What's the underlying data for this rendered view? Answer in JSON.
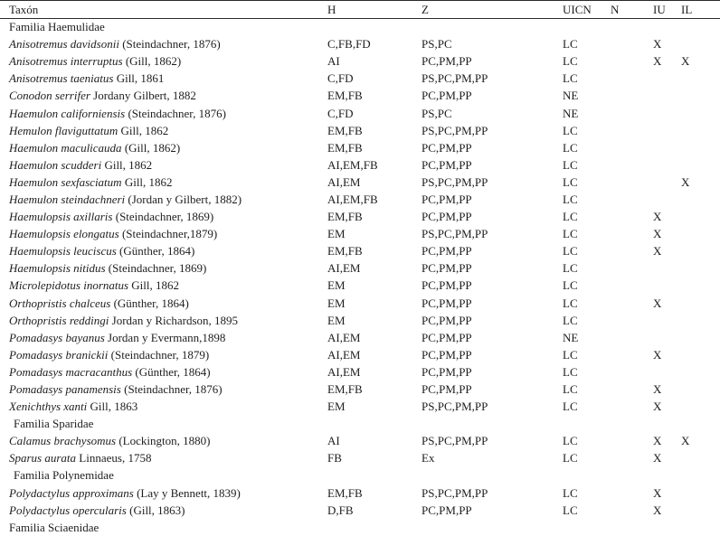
{
  "table": {
    "columns": [
      {
        "key": "taxon",
        "label": "Taxón"
      },
      {
        "key": "h",
        "label": "H"
      },
      {
        "key": "z",
        "label": "Z"
      },
      {
        "key": "uicn",
        "label": "UICN"
      },
      {
        "key": "n",
        "label": "N"
      },
      {
        "key": "iu",
        "label": "IU"
      },
      {
        "key": "il",
        "label": "IL"
      }
    ],
    "rows": [
      {
        "type": "family",
        "indent": false,
        "name": "Familia Haemulidae"
      },
      {
        "type": "species",
        "name": "Anisotremus davidsonii",
        "author": "(Steindachner, 1876)",
        "h": "C,FB,FD",
        "z": "PS,PC",
        "uicn": "LC",
        "n": "",
        "iu": "X",
        "il": ""
      },
      {
        "type": "species",
        "name": "Anisotremus interruptus",
        "author": "(Gill, 1862)",
        "h": "AI",
        "z": "PC,PM,PP",
        "uicn": "LC",
        "n": "",
        "iu": "X",
        "il": "X"
      },
      {
        "type": "species",
        "name": "Anisotremus taeniatus",
        "author": "Gill, 1861",
        "h": "C,FD",
        "z": "PS,PC,PM,PP",
        "uicn": "LC",
        "n": "",
        "iu": "",
        "il": ""
      },
      {
        "type": "species",
        "name": "Conodon serrifer",
        "author": "Jordany Gilbert, 1882",
        "h": "EM,FB",
        "z": "PC,PM,PP",
        "uicn": "NE",
        "n": "",
        "iu": "",
        "il": ""
      },
      {
        "type": "species",
        "name": "Haemulon californiensis",
        "author": "(Steindachner, 1876)",
        "h": "C,FD",
        "z": "PS,PC",
        "uicn": "NE",
        "n": "",
        "iu": "",
        "il": ""
      },
      {
        "type": "species",
        "name": "Hemulon flaviguttatum",
        "author": "Gill, 1862",
        "h": "EM,FB",
        "z": "PS,PC,PM,PP",
        "uicn": "LC",
        "n": "",
        "iu": "",
        "il": ""
      },
      {
        "type": "species",
        "name": "Haemulon maculicauda",
        "author": "(Gill, 1862)",
        "h": "EM,FB",
        "z": "PC,PM,PP",
        "uicn": "LC",
        "n": "",
        "iu": "",
        "il": ""
      },
      {
        "type": "species",
        "name": "Haemulon scudderi",
        "author": "Gill, 1862",
        "h": "AI,EM,FB",
        "z": "PC,PM,PP",
        "uicn": "LC",
        "n": "",
        "iu": "",
        "il": ""
      },
      {
        "type": "species",
        "name": "Haemulon sexfasciatum",
        "author": "Gill, 1862",
        "h": "AI,EM",
        "z": "PS,PC,PM,PP",
        "uicn": "LC",
        "n": "",
        "iu": "",
        "il": "X"
      },
      {
        "type": "species",
        "name": "Haemulon steindachneri",
        "author": "(Jordan y Gilbert, 1882)",
        "h": "AI,EM,FB",
        "z": "PC,PM,PP",
        "uicn": "LC",
        "n": "",
        "iu": "",
        "il": ""
      },
      {
        "type": "species",
        "name": "Haemulopsis axillaris",
        "author": "(Steindachner, 1869)",
        "h": "EM,FB",
        "z": "PC,PM,PP",
        "uicn": "LC",
        "n": "",
        "iu": "X",
        "il": ""
      },
      {
        "type": "species",
        "name": "Haemulopsis elongatus",
        "author": "(Steindachner,1879)",
        "h": "EM",
        "z": "PS,PC,PM,PP",
        "uicn": "LC",
        "n": "",
        "iu": "X",
        "il": ""
      },
      {
        "type": "species",
        "name": "Haemulopsis leuciscus",
        "author": "(Günther, 1864)",
        "h": "EM,FB",
        "z": "PC,PM,PP",
        "uicn": "LC",
        "n": "",
        "iu": "X",
        "il": ""
      },
      {
        "type": "species",
        "name": "Haemulopsis nitidus",
        "author": "(Steindachner, 1869)",
        "h": "AI,EM",
        "z": "PC,PM,PP",
        "uicn": "LC",
        "n": "",
        "iu": "",
        "il": ""
      },
      {
        "type": "species",
        "name": "Microlepidotus inornatus",
        "author": "Gill, 1862",
        "h": "EM",
        "z": "PC,PM,PP",
        "uicn": "LC",
        "n": "",
        "iu": "",
        "il": ""
      },
      {
        "type": "species",
        "name": "Orthopristis chalceus",
        "author": "(Günther, 1864)",
        "h": "EM",
        "z": "PC,PM,PP",
        "uicn": "LC",
        "n": "",
        "iu": "X",
        "il": ""
      },
      {
        "type": "species",
        "name": "Orthopristis reddingi",
        "author": "Jordan y Richardson, 1895",
        "h": "EM",
        "z": "PC,PM,PP",
        "uicn": "LC",
        "n": "",
        "iu": "",
        "il": ""
      },
      {
        "type": "species",
        "name": "Pomadasys bayanus",
        "author": "Jordan y Evermann,1898",
        "h": "AI,EM",
        "z": "PC,PM,PP",
        "uicn": "NE",
        "n": "",
        "iu": "",
        "il": ""
      },
      {
        "type": "species",
        "name": "Pomadasys branickii",
        "author": "(Steindachner, 1879)",
        "h": "AI,EM",
        "z": "PC,PM,PP",
        "uicn": "LC",
        "n": "",
        "iu": "X",
        "il": ""
      },
      {
        "type": "species",
        "name": "Pomadasys macracanthus",
        "author": "(Günther, 1864)",
        "h": "AI,EM",
        "z": "PC,PM,PP",
        "uicn": "LC",
        "n": "",
        "iu": "",
        "il": ""
      },
      {
        "type": "species",
        "name": "Pomadasys panamensis",
        "author": "(Steindachner, 1876)",
        "h": "EM,FB",
        "z": "PC,PM,PP",
        "uicn": "LC",
        "n": "",
        "iu": "X",
        "il": ""
      },
      {
        "type": "species",
        "name": "Xenichthys xanti",
        "author": "Gill, 1863",
        "h": "EM",
        "z": "PS,PC,PM,PP",
        "uicn": "LC",
        "n": "",
        "iu": "X",
        "il": ""
      },
      {
        "type": "family",
        "indent": true,
        "name": "Familia Sparidae"
      },
      {
        "type": "species",
        "name": "Calamus brachysomus",
        "author": "(Lockington, 1880)",
        "h": "AI",
        "z": "PS,PC,PM,PP",
        "uicn": "LC",
        "n": "",
        "iu": "X",
        "il": "X"
      },
      {
        "type": "species",
        "name": "Sparus aurata",
        "author": "Linnaeus, 1758",
        "h": "FB",
        "z": "Ex",
        "uicn": "LC",
        "n": "",
        "iu": "X",
        "il": ""
      },
      {
        "type": "family",
        "indent": true,
        "name": "Familia Polynemidae"
      },
      {
        "type": "species",
        "name": "Polydactylus approximans",
        "author": "(Lay y Bennett, 1839)",
        "h": "EM,FB",
        "z": "PS,PC,PM,PP",
        "uicn": "LC",
        "n": "",
        "iu": "X",
        "il": ""
      },
      {
        "type": "species",
        "name": "Polydactylus opercularis",
        "author": "(Gill, 1863)",
        "h": "D,FB",
        "z": "PC,PM,PP",
        "uicn": "LC",
        "n": "",
        "iu": "X",
        "il": ""
      },
      {
        "type": "family",
        "indent": false,
        "name": "Familia Sciaenidae"
      }
    ]
  }
}
